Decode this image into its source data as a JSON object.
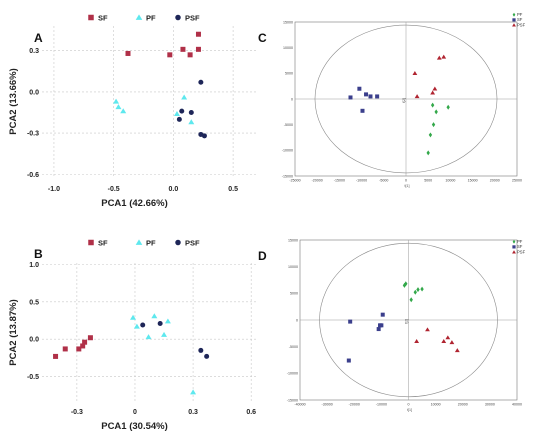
{
  "chart_data": [
    {
      "panel": "A",
      "type": "scatter",
      "xlabel": "PCA1 (42.66%)",
      "ylabel": "PCA2 (13.66%)",
      "xlim": [
        -1.1,
        0.7
      ],
      "ylim": [
        -0.62,
        0.48
      ],
      "xticks": [
        -1.0,
        -0.5,
        0.0,
        0.5
      ],
      "xtick_labels": [
        "-1.0",
        "-0.5",
        "0.0",
        "0.5"
      ],
      "yticks": [
        -0.6,
        -0.3,
        0.0,
        0.3
      ],
      "ytick_labels": [
        "-0.6",
        "-0.3",
        "0.0",
        "0.3"
      ],
      "legend_position": "top",
      "series": [
        {
          "name": "SF",
          "color": "#b03048",
          "marker": "square",
          "points": [
            [
              -0.38,
              0.28
            ],
            [
              -0.03,
              0.27
            ],
            [
              0.08,
              0.31
            ],
            [
              0.14,
              0.27
            ],
            [
              0.21,
              0.31
            ],
            [
              0.21,
              0.42
            ]
          ]
        },
        {
          "name": "PF",
          "color": "#5ee8ee",
          "marker": "triangle",
          "points": [
            [
              -0.48,
              -0.07
            ],
            [
              -0.46,
              -0.11
            ],
            [
              -0.42,
              -0.14
            ],
            [
              0.03,
              -0.16
            ],
            [
              0.09,
              -0.04
            ],
            [
              0.15,
              -0.22
            ]
          ]
        },
        {
          "name": "PSF",
          "color": "#1e2658",
          "marker": "circle",
          "points": [
            [
              0.05,
              -0.2
            ],
            [
              0.07,
              -0.14
            ],
            [
              0.15,
              -0.15
            ],
            [
              0.23,
              0.07
            ],
            [
              0.23,
              -0.31
            ],
            [
              0.26,
              -0.32
            ]
          ]
        }
      ]
    },
    {
      "panel": "B",
      "type": "scatter",
      "xlabel": "PCA1 (30.54%)",
      "ylabel": "PCA2 (13.87%)",
      "xlim": [
        -0.48,
        0.63
      ],
      "ylim": [
        -0.84,
        1.02
      ],
      "xticks": [
        -0.3,
        0.0,
        0.3,
        0.6
      ],
      "xtick_labels": [
        "-0.3",
        "0",
        "0.3",
        "0.6"
      ],
      "yticks": [
        -0.5,
        0.0,
        0.5,
        1.0
      ],
      "ytick_labels": [
        "-0.5",
        "0.0",
        "0.5",
        "1.0"
      ],
      "legend_position": "top",
      "series": [
        {
          "name": "SF",
          "color": "#b03048",
          "marker": "square",
          "points": [
            [
              -0.41,
              -0.23
            ],
            [
              -0.36,
              -0.13
            ],
            [
              -0.29,
              -0.13
            ],
            [
              -0.27,
              -0.09
            ],
            [
              -0.26,
              -0.04
            ],
            [
              -0.23,
              0.02
            ]
          ]
        },
        {
          "name": "PF",
          "color": "#5ee8ee",
          "marker": "triangle",
          "points": [
            [
              -0.01,
              0.29
            ],
            [
              0.01,
              0.17
            ],
            [
              0.07,
              0.03
            ],
            [
              0.1,
              0.31
            ],
            [
              0.15,
              0.06
            ],
            [
              0.17,
              0.24
            ],
            [
              0.3,
              -0.71
            ]
          ]
        },
        {
          "name": "PSF",
          "color": "#1e2658",
          "marker": "circle",
          "points": [
            [
              0.04,
              0.19
            ],
            [
              0.13,
              0.21
            ],
            [
              0.34,
              -0.15
            ],
            [
              0.37,
              -0.23
            ]
          ]
        }
      ]
    },
    {
      "panel": "C",
      "type": "scatter",
      "xlabel": "t[1]",
      "ylabel": "t[2]",
      "xlim": [
        -25000,
        25000
      ],
      "ylim": [
        -15000,
        15000
      ],
      "xticks": [
        -25000,
        -20000,
        -15000,
        -10000,
        -5000,
        0,
        5000,
        10000,
        15000,
        20000,
        25000
      ],
      "xtick_labels": [
        "-25000",
        "-20000",
        "-15000",
        "-10000",
        "-5000",
        "0",
        "5000",
        "10000",
        "15000",
        "20000",
        "25000"
      ],
      "yticks": [
        -15000,
        -10000,
        -5000,
        0,
        5000,
        10000,
        15000
      ],
      "ytick_labels": [
        "-15000",
        "-10000",
        "-5000",
        "0",
        "5000",
        "10000",
        "15000"
      ],
      "legend_position": "top-right",
      "series": [
        {
          "name": "PF",
          "color": "#33a84a",
          "marker": "diamond",
          "points": [
            [
              5000,
              -10500
            ],
            [
              5500,
              -7000
            ],
            [
              6200,
              -5000
            ],
            [
              6800,
              -2500
            ],
            [
              6000,
              -1200
            ],
            [
              9500,
              -1600
            ]
          ]
        },
        {
          "name": "SF",
          "color": "#3b3f8c",
          "marker": "square",
          "points": [
            [
              -12500,
              300
            ],
            [
              -10500,
              2000
            ],
            [
              -9000,
              900
            ],
            [
              -8000,
              500
            ],
            [
              -6500,
              500
            ],
            [
              -9800,
              -2300
            ]
          ]
        },
        {
          "name": "PSF",
          "color": "#b02430",
          "marker": "triangle",
          "points": [
            [
              2000,
              5000
            ],
            [
              7500,
              8000
            ],
            [
              8500,
              8200
            ],
            [
              6500,
              2000
            ],
            [
              6000,
              1200
            ],
            [
              2500,
              500
            ]
          ]
        }
      ]
    },
    {
      "panel": "D",
      "type": "scatter",
      "xlabel": "t[1]",
      "ylabel": "t[2]",
      "xlim": [
        -40000,
        40000
      ],
      "ylim": [
        -15000,
        15000
      ],
      "xticks": [
        -40000,
        -30000,
        -20000,
        -10000,
        0,
        10000,
        20000,
        30000,
        40000
      ],
      "xtick_labels": [
        "-40000",
        "-30000",
        "-20000",
        "-10000",
        "0",
        "10000",
        "20000",
        "30000",
        "40000"
      ],
      "yticks": [
        -15000,
        -10000,
        -5000,
        0,
        5000,
        10000,
        15000
      ],
      "ytick_labels": [
        "-15000",
        "-10000",
        "-5000",
        "0",
        "5000",
        "10000",
        "15000"
      ],
      "legend_position": "top-right",
      "series": [
        {
          "name": "PF",
          "color": "#33a84a",
          "marker": "diamond",
          "points": [
            [
              -1500,
              6500
            ],
            [
              -1000,
              6800
            ],
            [
              1000,
              3800
            ],
            [
              2500,
              5200
            ],
            [
              3500,
              5700
            ],
            [
              5000,
              5800
            ]
          ]
        },
        {
          "name": "SF",
          "color": "#3b3f8c",
          "marker": "square",
          "points": [
            [
              -22000,
              -7600
            ],
            [
              -21500,
              -300
            ],
            [
              -11000,
              -1700
            ],
            [
              -10500,
              -1000
            ],
            [
              -10000,
              -1000
            ],
            [
              -9500,
              1000
            ]
          ]
        },
        {
          "name": "PSF",
          "color": "#b02430",
          "marker": "triangle",
          "points": [
            [
              3000,
              -4000
            ],
            [
              7000,
              -1800
            ],
            [
              13000,
              -4000
            ],
            [
              14500,
              -3300
            ],
            [
              16000,
              -4200
            ],
            [
              18000,
              -5700
            ]
          ]
        }
      ]
    }
  ]
}
